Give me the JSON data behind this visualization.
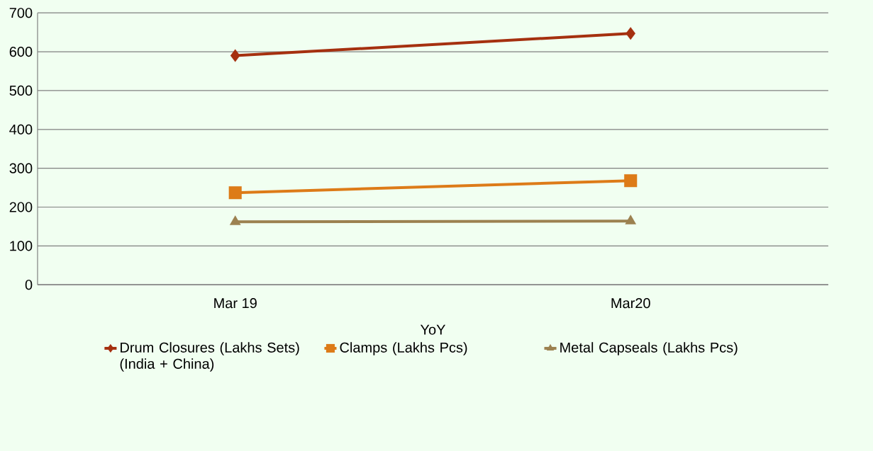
{
  "chart_data": {
    "type": "line",
    "xlabel": "YoY",
    "categories": [
      "Mar 19",
      "Mar20"
    ],
    "series": [
      {
        "name": "Drum Closures (Lakhs Sets) (India + China)",
        "color": "#a5300f",
        "marker": "diamond",
        "values": [
          590,
          647
        ]
      },
      {
        "name": "Clamps (Lakhs Pcs)",
        "color": "#dd7b18",
        "marker": "square",
        "values": [
          237,
          268
        ]
      },
      {
        "name": "Metal Capseals (Lakhs Pcs)",
        "color": "#9c8150",
        "marker": "triangle",
        "values": [
          162,
          164
        ]
      }
    ],
    "ylim": [
      0,
      700
    ],
    "yticks": [
      0,
      100,
      200,
      300,
      400,
      500,
      600,
      700
    ],
    "grid": "y",
    "legend": "bottom",
    "line_style": "solid"
  }
}
